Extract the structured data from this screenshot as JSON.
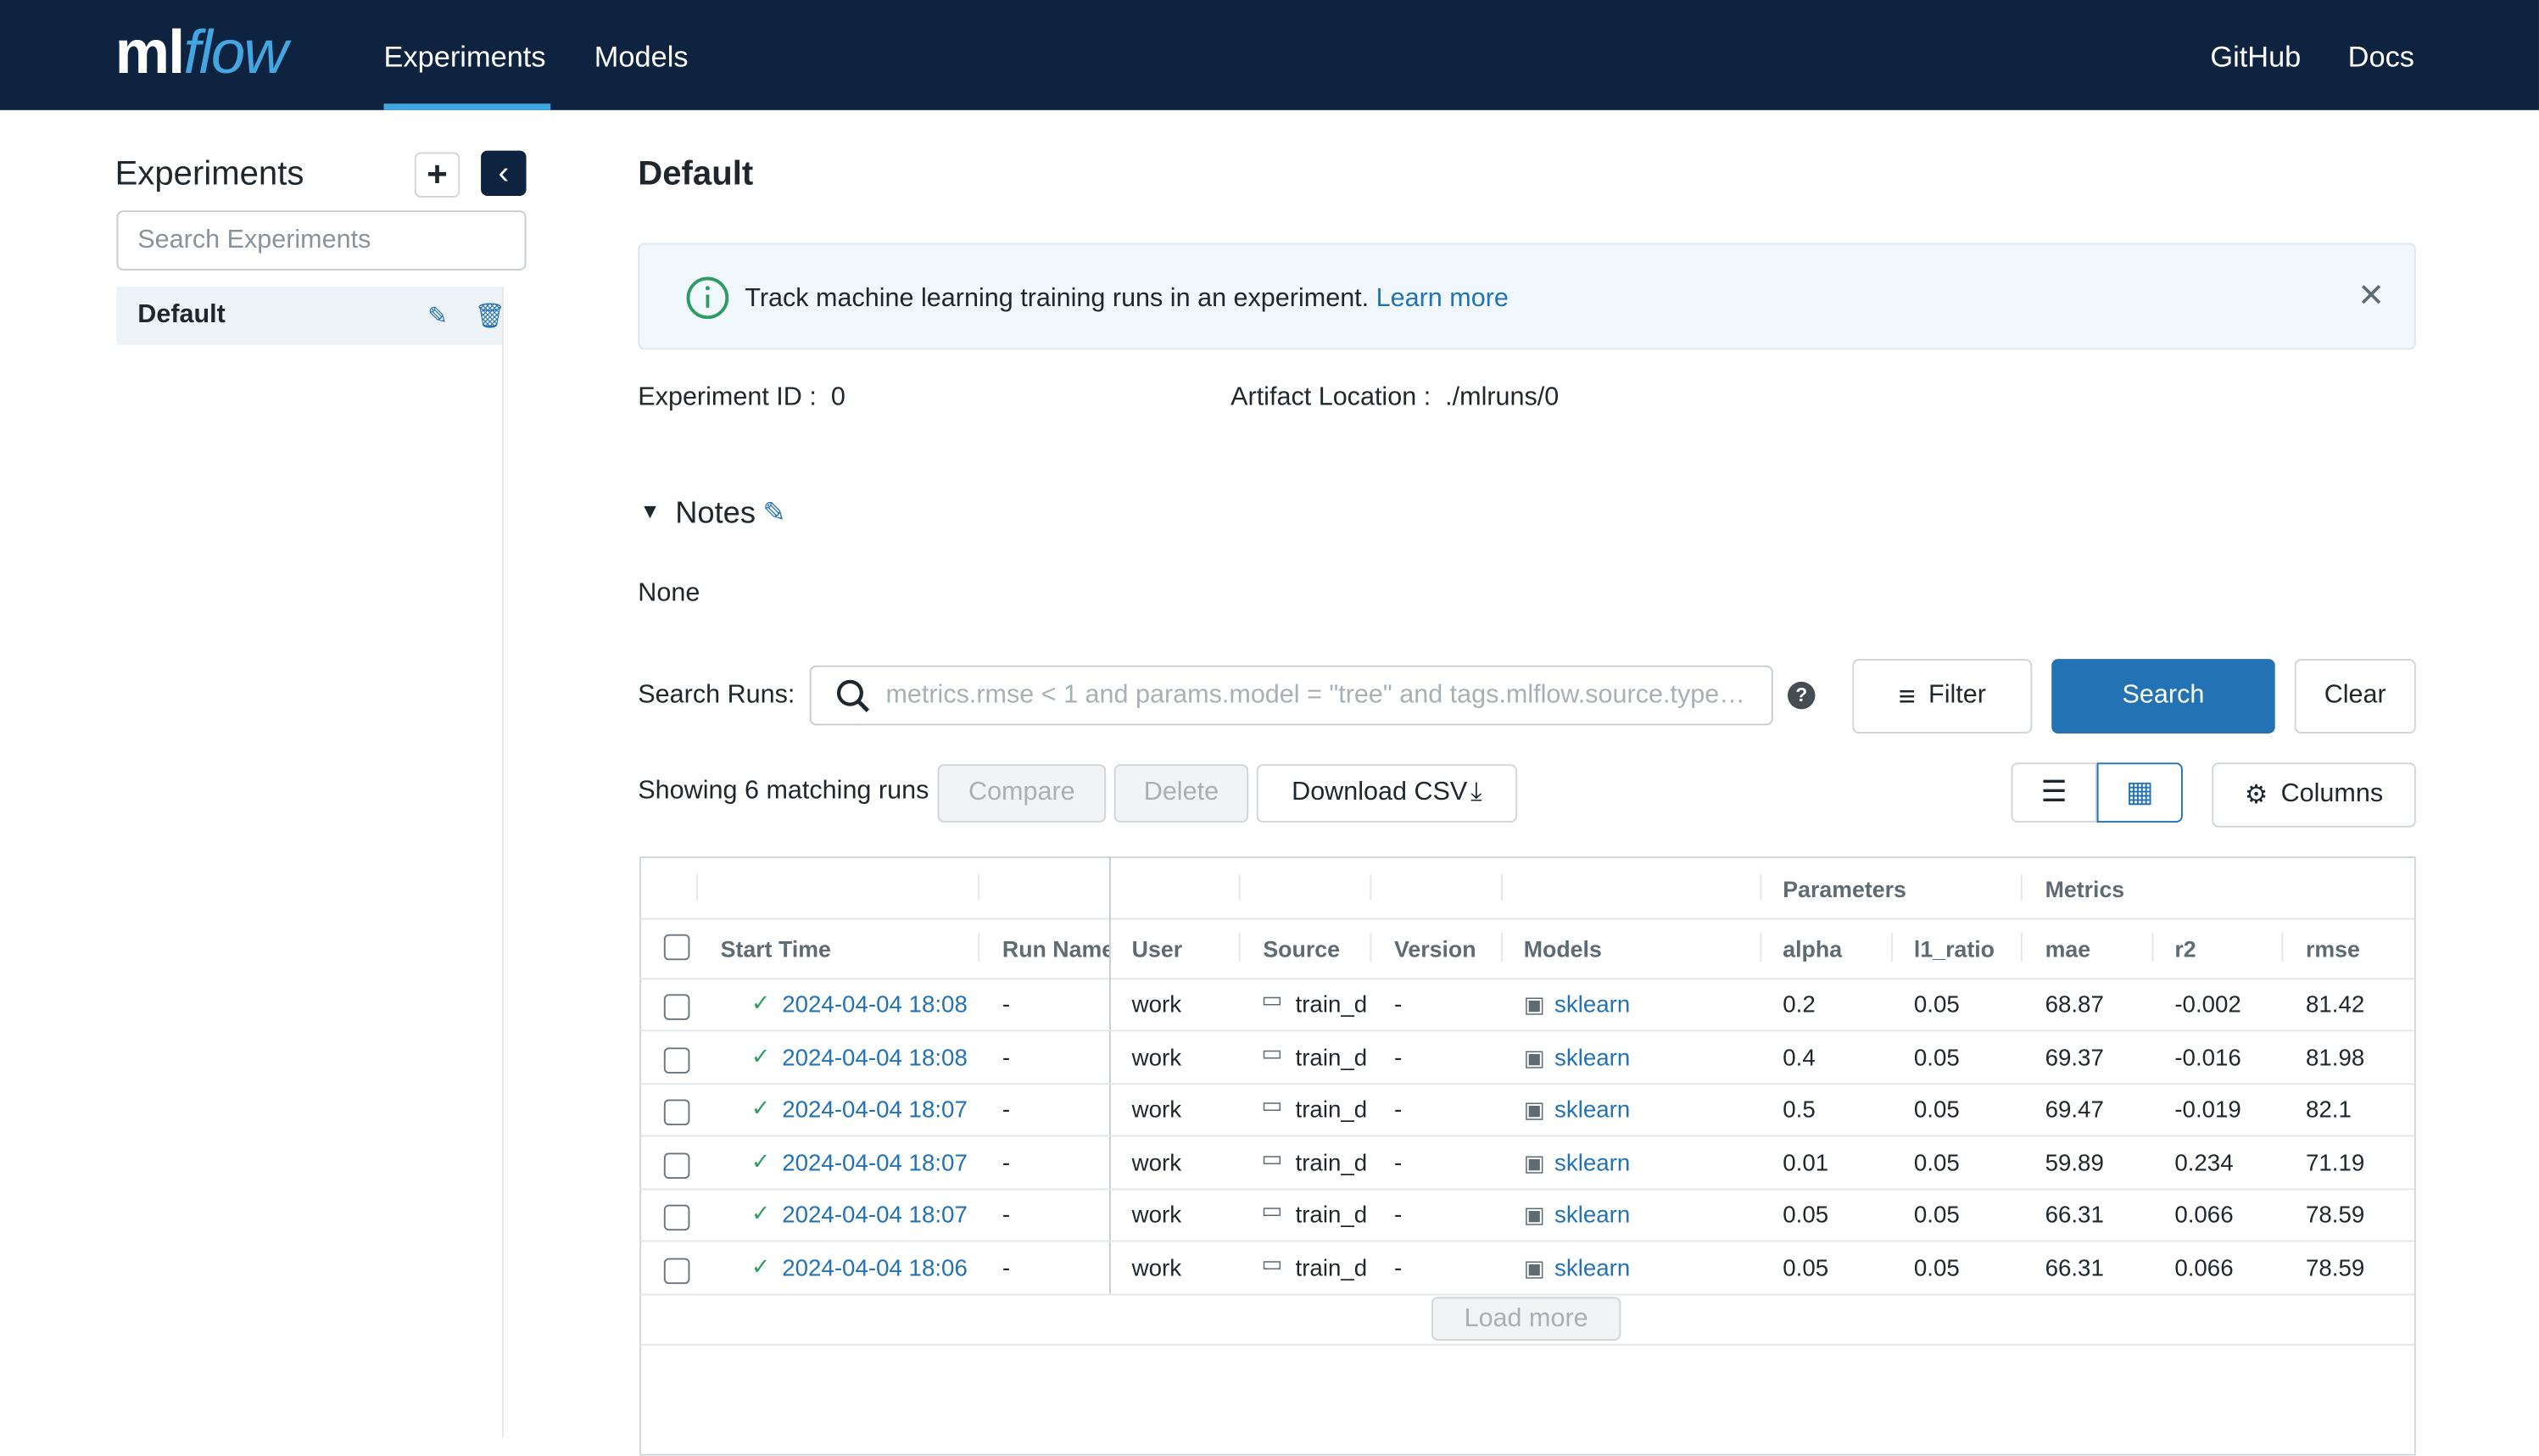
{
  "header": {
    "logo": [
      "ml",
      "flow"
    ],
    "nav": [
      "Experiments",
      "Models"
    ],
    "links": [
      "GitHub",
      "Docs"
    ]
  },
  "sidebar": {
    "title": "Experiments",
    "search_placeholder": "Search Experiments",
    "experiments": [
      "Default"
    ]
  },
  "main": {
    "title": "Default",
    "banner": {
      "text": "Track machine learning training runs in an experiment.",
      "link": "Learn more"
    },
    "experiment_id": {
      "label": "Experiment ID",
      "value": "0"
    },
    "artifact_location": {
      "label": "Artifact Location",
      "value": "./mlruns/0"
    },
    "notes": {
      "title": "Notes",
      "content": "None"
    },
    "search": {
      "label": "Search Runs:",
      "placeholder": "metrics.rmse < 1 and params.model = \"tree\" and tags.mlflow.source.type…",
      "filter": "Filter",
      "search": "Search",
      "clear": "Clear"
    },
    "toolbar": {
      "count": "Showing 6 matching runs",
      "compare": "Compare",
      "delete": "Delete",
      "download": "Download CSV",
      "columns": "Columns"
    },
    "table": {
      "groups": [
        "Parameters",
        "Metrics"
      ],
      "columns": [
        "Start Time",
        "Run Name",
        "User",
        "Source",
        "Version",
        "Models",
        "alpha",
        "l1_ratio",
        "mae",
        "r2",
        "rmse"
      ],
      "rows": [
        [
          "2024-04-04 18:08",
          "-",
          "work",
          "train_d",
          "-",
          "sklearn",
          "0.2",
          "0.05",
          "68.87",
          "-0.002",
          "81.42"
        ],
        [
          "2024-04-04 18:08",
          "-",
          "work",
          "train_d",
          "-",
          "sklearn",
          "0.4",
          "0.05",
          "69.37",
          "-0.016",
          "81.98"
        ],
        [
          "2024-04-04 18:07",
          "-",
          "work",
          "train_d",
          "-",
          "sklearn",
          "0.5",
          "0.05",
          "69.47",
          "-0.019",
          "82.1"
        ],
        [
          "2024-04-04 18:07",
          "-",
          "work",
          "train_d",
          "-",
          "sklearn",
          "0.01",
          "0.05",
          "59.89",
          "0.234",
          "71.19"
        ],
        [
          "2024-04-04 18:07",
          "-",
          "work",
          "train_d",
          "-",
          "sklearn",
          "0.05",
          "0.05",
          "66.31",
          "0.066",
          "78.59"
        ],
        [
          "2024-04-04 18:06",
          "-",
          "work",
          "train_d",
          "-",
          "sklearn",
          "0.05",
          "0.05",
          "66.31",
          "0.066",
          "78.59"
        ]
      ],
      "load_more": "Load more"
    }
  }
}
